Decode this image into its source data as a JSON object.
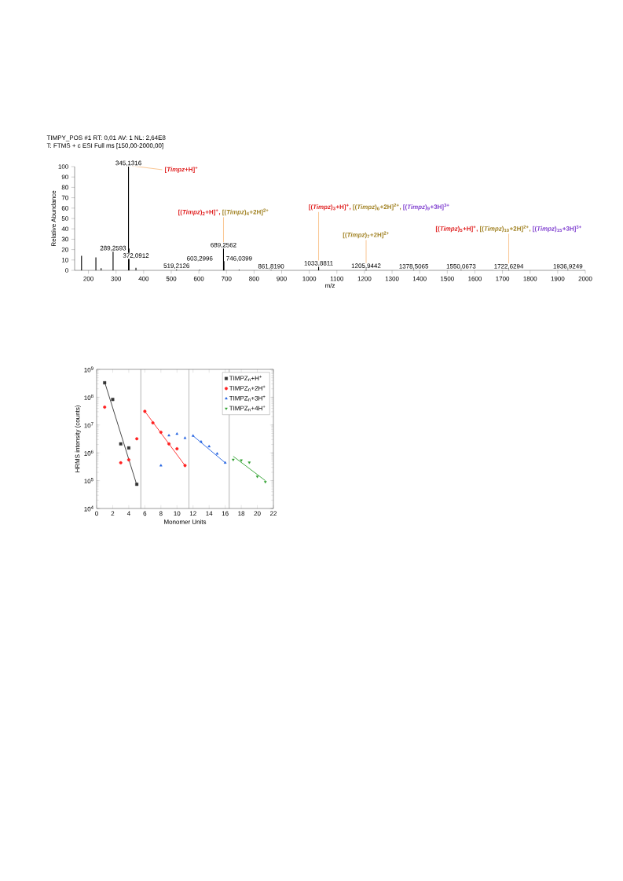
{
  "chart_data": [
    {
      "type": "bar",
      "title": "TIMPY_POS #1   RT: 0,01   AV: 1   NL: 2,64E8",
      "subtitle": "T: FTMS + c ESI Full ms [150,00-2000,00]",
      "xlabel": "m/z",
      "ylabel": "Relative Abundance",
      "color": "#000000",
      "x": [
        175,
        227,
        246,
        289.2593,
        345.1316,
        347,
        372.0912,
        519.2126,
        603.2996,
        689.2562,
        691,
        746.0399,
        861.819,
        1033.8811,
        1205.9442,
        1378.5065,
        1550.0673,
        1722.6294,
        1936.9249
      ],
      "values": [
        14,
        12.5,
        2,
        18,
        100,
        21,
        2.5,
        1,
        0.5,
        21,
        9,
        0.5,
        0.5,
        3.5,
        1,
        0.5,
        0.5,
        0.5,
        0.5
      ],
      "value_labels": [
        null,
        null,
        null,
        "289,2593",
        "345,1316",
        null,
        "372,0912",
        "519,2126",
        "603,2996",
        "689,2562",
        null,
        "746,0399",
        "861,8190",
        "1033,8811",
        "1205,9442",
        "1378,5065",
        "1550,0673",
        "1722,6294",
        "1936,9249"
      ],
      "xlim": [
        150,
        2000
      ],
      "xticks": [
        200,
        300,
        400,
        500,
        600,
        700,
        800,
        900,
        1000,
        1100,
        1200,
        1300,
        1400,
        1500,
        1600,
        1700,
        1800,
        1900,
        2000
      ],
      "ylim": [
        0,
        100
      ],
      "yticks": [
        0,
        10,
        20,
        30,
        40,
        50,
        60,
        70,
        80,
        90,
        100
      ],
      "annotations": [
        {
          "text": "[*Timpz*+H]$^{+}$",
          "x": 345.1316,
          "y": 100
        },
        {
          "text": "[(*Timpz*)$_{2}$+H]$^{+}$,",
          "x": 689.2562,
          "y": 21
        },
        "[(*Timpz*)$_{4}$+2H]$^{2+}$",
        {
          "text": "[(*Timpz*)$_{3}$+H]$^{+}$,",
          "x": 1033.8811,
          "y": 3.5
        },
        "[(*Timpz*)$_{6}$+2H]$^{2+}$,",
        "[(*Timpz*)$_{9}$+3H]$^{3+}$",
        {
          "text": "[(*Timpz*)$_{7}$+2H]$^{2+}$",
          "x": 1205.9442,
          "y": 1
        },
        "[(*Timpz*)$_{5}$+H]$^{+}$,",
        {
          "text": "[(*Timpz*)$_{10}$+2H]$^{2+}$,",
          "x": 1722.6294,
          "y": 0.5
        },
        "[(*Timpz*)$_{15}$+3H]$^{3+}$"
      ]
    },
    {
      "type": "scatter",
      "xlabel": "Monomer Units",
      "ylabel": "HRMS intensity (counts)",
      "log": "y",
      "legend": "top right",
      "xlim": [
        0,
        22
      ],
      "xticks": [
        0,
        2,
        4,
        6,
        8,
        10,
        12,
        14,
        16,
        18,
        20,
        22
      ],
      "ylim": [
        10000,
        1000000000
      ],
      "yticks": [
        {
          "value": 10000,
          "label": "10$^{4}$"
        },
        {
          "value": 100000,
          "label": "10$^{5}$"
        },
        {
          "value": 1000000,
          "label": "10$^{6}$"
        },
        {
          "value": 10000000,
          "label": "10$^{7}$"
        },
        {
          "value": 100000000,
          "label": "10$^{8}$"
        },
        {
          "value": 1000000000,
          "label": "10$^{9}$"
        }
      ],
      "ref_lines": [
        {
          "axis": "x",
          "value": 5.5,
          "color": "#808080"
        },
        {
          "axis": "x",
          "value": 11.5,
          "color": "#808080"
        },
        {
          "axis": "x",
          "value": 16.5,
          "color": "#808080"
        }
      ],
      "series": [
        {
          "name": "TIMPZ$_{n}$+H$^{+}$",
          "color": "#333333",
          "marker": "square",
          "x": [
            1,
            2,
            3,
            4,
            5
          ],
          "values": [
            330000000,
            83000000,
            2100000,
            1500000,
            74000
          ]
        },
        {
          "name": "TIMPZ$_{n}$+2H$^{+}$",
          "color": "#ff2020",
          "marker": "circle",
          "x": [
            1,
            3,
            4,
            5,
            6,
            7,
            8,
            9,
            10,
            11
          ],
          "values": [
            44000000,
            440000,
            560000,
            3200000,
            31000000,
            12000000,
            5500000,
            2100000,
            1400000,
            350000
          ]
        },
        {
          "name": "TIMPZ$_{n}$+3H$^{+}$",
          "color": "#1f5fe0",
          "marker": "triangle",
          "x": [
            8,
            9,
            10,
            11,
            12,
            13,
            14,
            15,
            16
          ],
          "values": [
            350000,
            4200000,
            4800000,
            3400000,
            4100000,
            2500000,
            1700000,
            930000,
            440000
          ]
        },
        {
          "name": "TIMPZ$_{n}$+4H$^{+}$",
          "color": "#2ca02c",
          "marker": "triangle-down",
          "x": [
            17,
            18,
            19,
            20,
            21
          ],
          "values": [
            570000,
            540000,
            450000,
            140000,
            90000
          ]
        },
        {
          "type": "line",
          "color": "#333333",
          "marker": "none",
          "x": [
            1,
            5
          ],
          "values": [
            350000000,
            70000
          ]
        },
        {
          "type": "line",
          "color": "#ff2020",
          "marker": "none",
          "x": [
            6,
            11
          ],
          "values": [
            31000000,
            350000
          ]
        },
        {
          "type": "line",
          "color": "#1f5fe0",
          "marker": "none",
          "x": [
            12,
            16
          ],
          "values": [
            4100000,
            440000
          ]
        },
        {
          "type": "line",
          "color": "#2ca02c",
          "marker": "none",
          "x": [
            17,
            21
          ],
          "values": [
            750000,
            100000
          ]
        }
      ]
    }
  ]
}
